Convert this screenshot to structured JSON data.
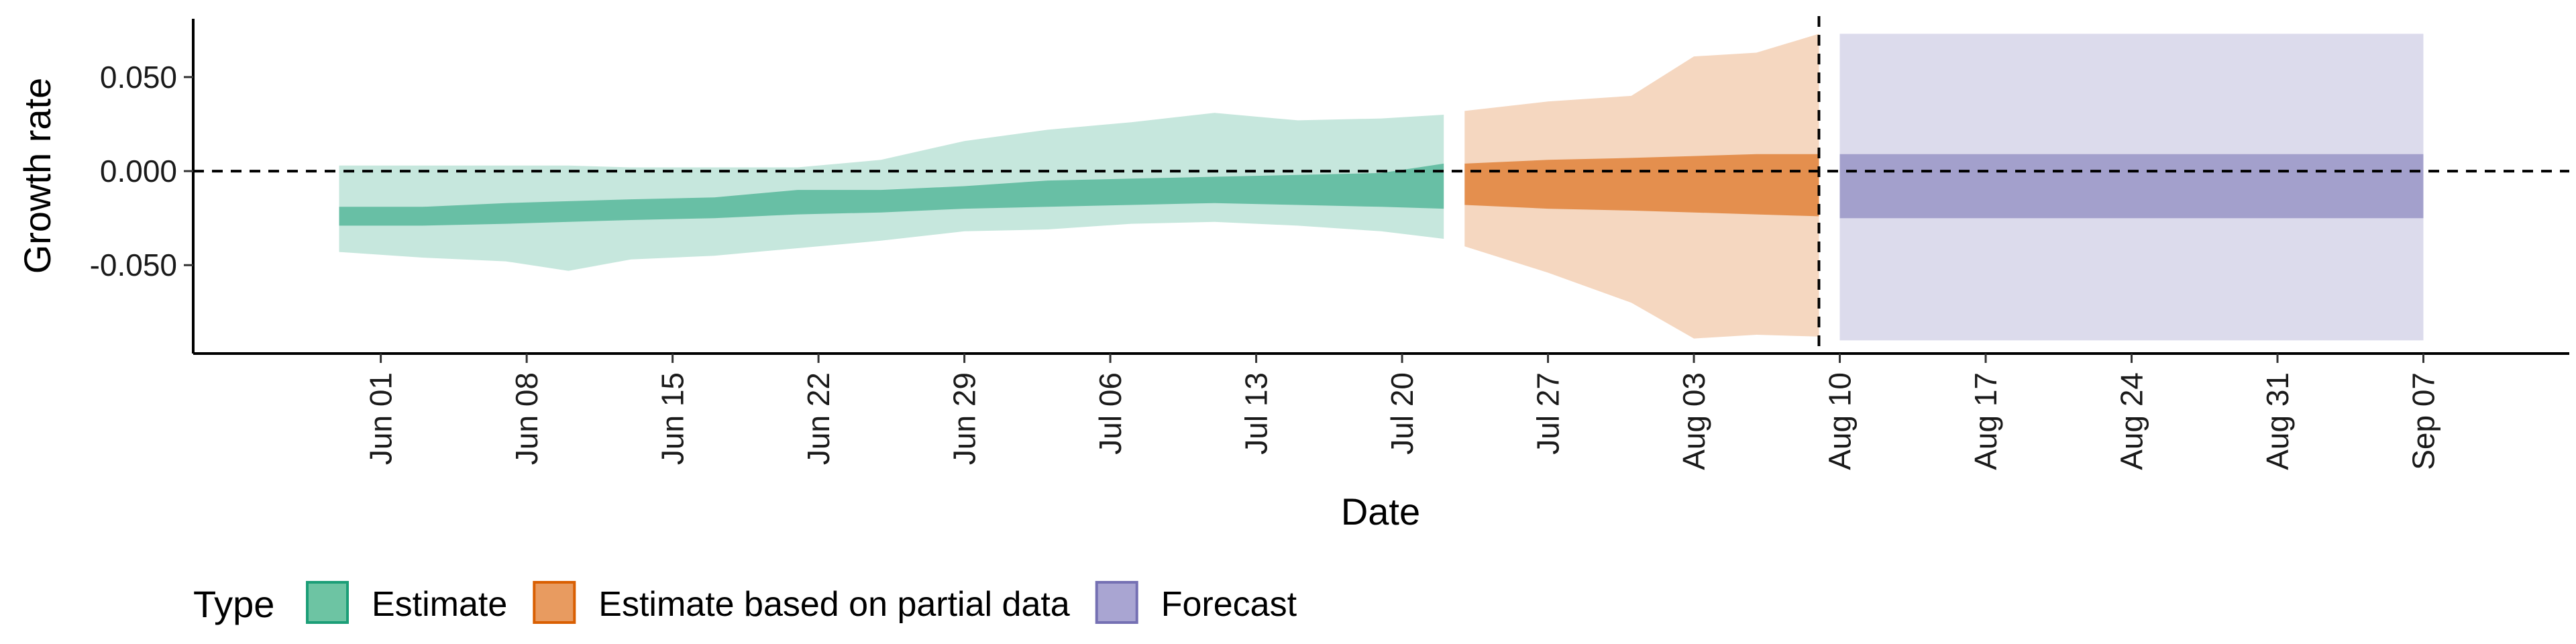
{
  "chart_data": {
    "type": "area",
    "xlabel": "Date",
    "ylabel": "Growth rate",
    "x_type": "date",
    "xlim": [
      "2020-05-23",
      "2020-09-14"
    ],
    "ylim": [
      -0.097,
      0.081
    ],
    "x_tick_labels": [
      {
        "date": "2020-06-01",
        "label": "Jun 01"
      },
      {
        "date": "2020-06-08",
        "label": "Jun 08"
      },
      {
        "date": "2020-06-15",
        "label": "Jun 15"
      },
      {
        "date": "2020-06-22",
        "label": "Jun 22"
      },
      {
        "date": "2020-06-29",
        "label": "Jun 29"
      },
      {
        "date": "2020-07-06",
        "label": "Jul 06"
      },
      {
        "date": "2020-07-13",
        "label": "Jul 13"
      },
      {
        "date": "2020-07-20",
        "label": "Jul 20"
      },
      {
        "date": "2020-07-27",
        "label": "Jul 27"
      },
      {
        "date": "2020-08-03",
        "label": "Aug 03"
      },
      {
        "date": "2020-08-10",
        "label": "Aug 10"
      },
      {
        "date": "2020-08-17",
        "label": "Aug 17"
      },
      {
        "date": "2020-08-24",
        "label": "Aug 24"
      },
      {
        "date": "2020-08-31",
        "label": "Aug 31"
      },
      {
        "date": "2020-09-07",
        "label": "Sep 07"
      }
    ],
    "y_tick_labels": [
      {
        "value": 0.05,
        "label": "0.050"
      },
      {
        "value": 0.0,
        "label": "0.000"
      },
      {
        "value": -0.05,
        "label": "-0.050"
      }
    ],
    "reference_lines": {
      "horizontal_y": 0.0,
      "vertical_date": "2020-08-09",
      "style": "dashed"
    },
    "grid": false,
    "legend": {
      "title": "Type",
      "position": "bottom-left",
      "entries": [
        {
          "label": "Estimate",
          "fill": "#6dc4a3",
          "stroke": "#1b9e77"
        },
        {
          "label": "Estimate based on partial data",
          "fill": "#e89b60",
          "stroke": "#d95f02"
        },
        {
          "label": "Forecast",
          "fill": "#a9a5d2",
          "stroke": "#7570b3"
        }
      ]
    },
    "series": [
      {
        "name": "Estimate",
        "color": "#1b9e77",
        "outer_opacity": 0.25,
        "inner_opacity": 0.55,
        "points": [
          {
            "date": "2020-05-30",
            "outer_lower": -0.043,
            "inner_lower": -0.029,
            "inner_upper": -0.019,
            "outer_upper": 0.003
          },
          {
            "date": "2020-06-03",
            "outer_lower": -0.046,
            "inner_lower": -0.029,
            "inner_upper": -0.019,
            "outer_upper": 0.003
          },
          {
            "date": "2020-06-07",
            "outer_lower": -0.048,
            "inner_lower": -0.028,
            "inner_upper": -0.017,
            "outer_upper": 0.003
          },
          {
            "date": "2020-06-10",
            "outer_lower": -0.053,
            "inner_lower": -0.027,
            "inner_upper": -0.016,
            "outer_upper": 0.003
          },
          {
            "date": "2020-06-13",
            "outer_lower": -0.047,
            "inner_lower": -0.026,
            "inner_upper": -0.015,
            "outer_upper": 0.002
          },
          {
            "date": "2020-06-17",
            "outer_lower": -0.045,
            "inner_lower": -0.025,
            "inner_upper": -0.014,
            "outer_upper": 0.002
          },
          {
            "date": "2020-06-21",
            "outer_lower": -0.041,
            "inner_lower": -0.023,
            "inner_upper": -0.01,
            "outer_upper": 0.002
          },
          {
            "date": "2020-06-25",
            "outer_lower": -0.037,
            "inner_lower": -0.022,
            "inner_upper": -0.01,
            "outer_upper": 0.006
          },
          {
            "date": "2020-06-29",
            "outer_lower": -0.032,
            "inner_lower": -0.02,
            "inner_upper": -0.008,
            "outer_upper": 0.016
          },
          {
            "date": "2020-07-03",
            "outer_lower": -0.031,
            "inner_lower": -0.019,
            "inner_upper": -0.005,
            "outer_upper": 0.022
          },
          {
            "date": "2020-07-07",
            "outer_lower": -0.028,
            "inner_lower": -0.018,
            "inner_upper": -0.004,
            "outer_upper": 0.026
          },
          {
            "date": "2020-07-11",
            "outer_lower": -0.027,
            "inner_lower": -0.017,
            "inner_upper": -0.003,
            "outer_upper": 0.031
          },
          {
            "date": "2020-07-15",
            "outer_lower": -0.029,
            "inner_lower": -0.018,
            "inner_upper": -0.002,
            "outer_upper": 0.027
          },
          {
            "date": "2020-07-19",
            "outer_lower": -0.032,
            "inner_lower": -0.019,
            "inner_upper": -0.001,
            "outer_upper": 0.028
          },
          {
            "date": "2020-07-22",
            "outer_lower": -0.036,
            "inner_lower": -0.02,
            "inner_upper": 0.004,
            "outer_upper": 0.03
          }
        ]
      },
      {
        "name": "Estimate based on partial data",
        "color": "#d95f02",
        "outer_opacity": 0.25,
        "inner_opacity": 0.6,
        "points": [
          {
            "date": "2020-07-23",
            "outer_lower": -0.04,
            "inner_lower": -0.018,
            "inner_upper": 0.004,
            "outer_upper": 0.032
          },
          {
            "date": "2020-07-27",
            "outer_lower": -0.054,
            "inner_lower": -0.02,
            "inner_upper": 0.006,
            "outer_upper": 0.037
          },
          {
            "date": "2020-07-31",
            "outer_lower": -0.07,
            "inner_lower": -0.021,
            "inner_upper": 0.007,
            "outer_upper": 0.04
          },
          {
            "date": "2020-08-03",
            "outer_lower": -0.089,
            "inner_lower": -0.022,
            "inner_upper": 0.008,
            "outer_upper": 0.061
          },
          {
            "date": "2020-08-06",
            "outer_lower": -0.087,
            "inner_lower": -0.023,
            "inner_upper": 0.009,
            "outer_upper": 0.063
          },
          {
            "date": "2020-08-09",
            "outer_lower": -0.088,
            "inner_lower": -0.024,
            "inner_upper": 0.009,
            "outer_upper": 0.073
          }
        ]
      },
      {
        "name": "Forecast",
        "color": "#7570b3",
        "outer_opacity": 0.25,
        "inner_opacity": 0.55,
        "points": [
          {
            "date": "2020-08-10",
            "outer_lower": -0.09,
            "inner_lower": -0.025,
            "inner_upper": 0.009,
            "outer_upper": 0.073
          },
          {
            "date": "2020-09-07",
            "outer_lower": -0.09,
            "inner_lower": -0.025,
            "inner_upper": 0.009,
            "outer_upper": 0.073
          }
        ]
      }
    ]
  }
}
